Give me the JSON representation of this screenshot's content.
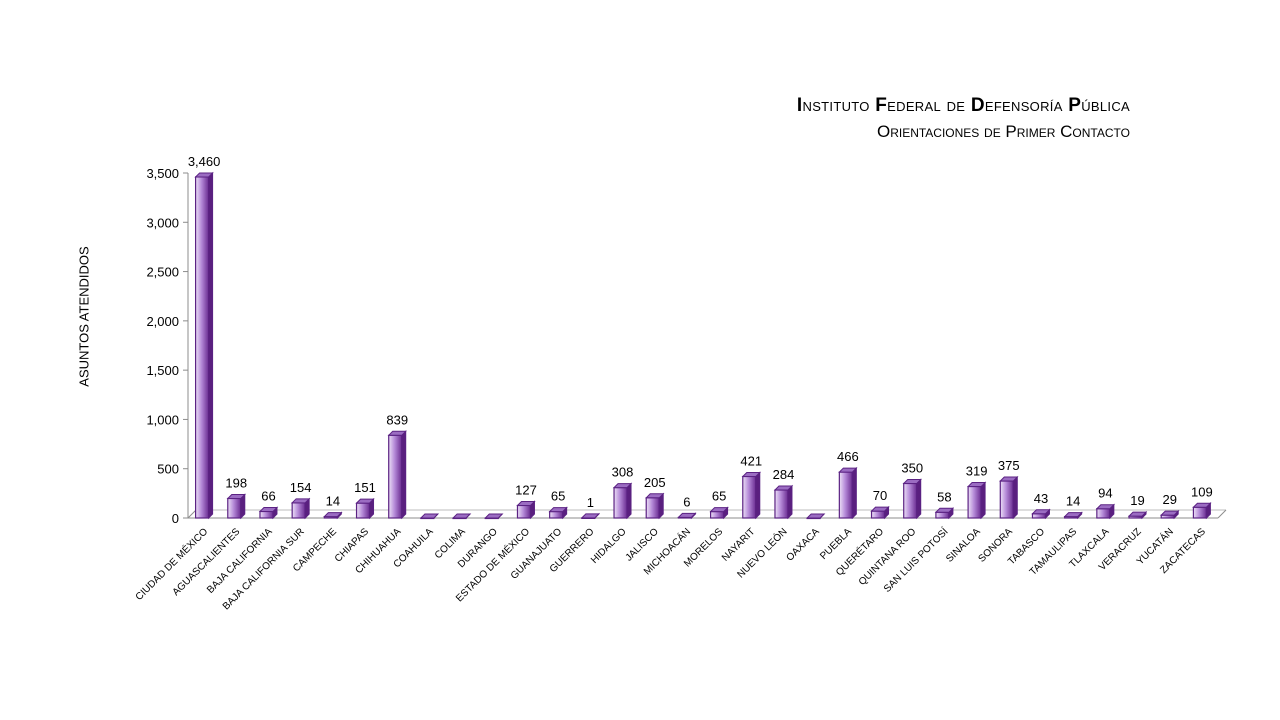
{
  "chart_data": {
    "type": "bar",
    "title_parts": [
      {
        "initial": "I",
        "rest": "nstituto "
      },
      {
        "initial": "F",
        "rest": "ederal de "
      },
      {
        "initial": "D",
        "rest": "efensoría "
      },
      {
        "initial": "P",
        "rest": "ública"
      }
    ],
    "subtitle": "Orientaciones de Primer Contacto",
    "ylabel": "ASUNTOS ATENDIDOS",
    "xlabel": "",
    "ylim": [
      0,
      3500
    ],
    "yticks": [
      0,
      500,
      1000,
      1500,
      2000,
      2500,
      3000,
      3500
    ],
    "ytick_labels": [
      "0",
      "500",
      "1,000",
      "1,500",
      "2,000",
      "2,500",
      "3,000",
      "3,500"
    ],
    "categories": [
      "CIUDAD DE MÉXICO",
      "AGUASCALIENTES",
      "BAJA CALIFORNIA",
      "BAJA CALIFORNIA SUR",
      "CAMPECHE",
      "CHIAPAS",
      "CHIHUAHUA",
      "COAHUILA",
      "COLIMA",
      "DURANGO",
      "ESTADO DE MÉXICO",
      "GUANAJUATO",
      "GUERRERO",
      "HIDALGO",
      "JALISCO",
      "MICHOACÁN",
      "MORELOS",
      "NAYARIT",
      "NUEVO LEÓN",
      "OAXACA",
      "PUEBLA",
      "QUERÉTARO",
      "QUINTANA ROO",
      "SAN LUIS POTOSÍ",
      "SINALOA",
      "SONORA",
      "TABASCO",
      "TAMAULIPAS",
      "TLAXCALA",
      "VERACRUZ",
      "YUCATÁN",
      "ZACATECAS"
    ],
    "values": [
      3460,
      198,
      66,
      154,
      14,
      151,
      839,
      0,
      0,
      0,
      127,
      65,
      1,
      308,
      205,
      6,
      65,
      421,
      284,
      0,
      466,
      70,
      350,
      58,
      319,
      375,
      43,
      14,
      94,
      19,
      29,
      109
    ],
    "data_labels": [
      "3,460",
      "198",
      "66",
      "154",
      "14",
      "151",
      "839",
      "",
      "",
      "",
      "127",
      "65",
      "1",
      "308",
      "205",
      "6",
      "65",
      "421",
      "284",
      "",
      "466",
      "70",
      "350",
      "58",
      "319",
      "375",
      "43",
      "14",
      "94",
      "19",
      "29",
      "109"
    ],
    "grid": false,
    "legend": "none",
    "colors": {
      "bar_dark": "#6a2c91",
      "bar_mid": "#b58ad8",
      "bar_light": "#ece0f6",
      "bar_top": "#9b6cc2",
      "bar_side": "#5a1f7f",
      "bar_stroke": "#5b2283"
    }
  }
}
